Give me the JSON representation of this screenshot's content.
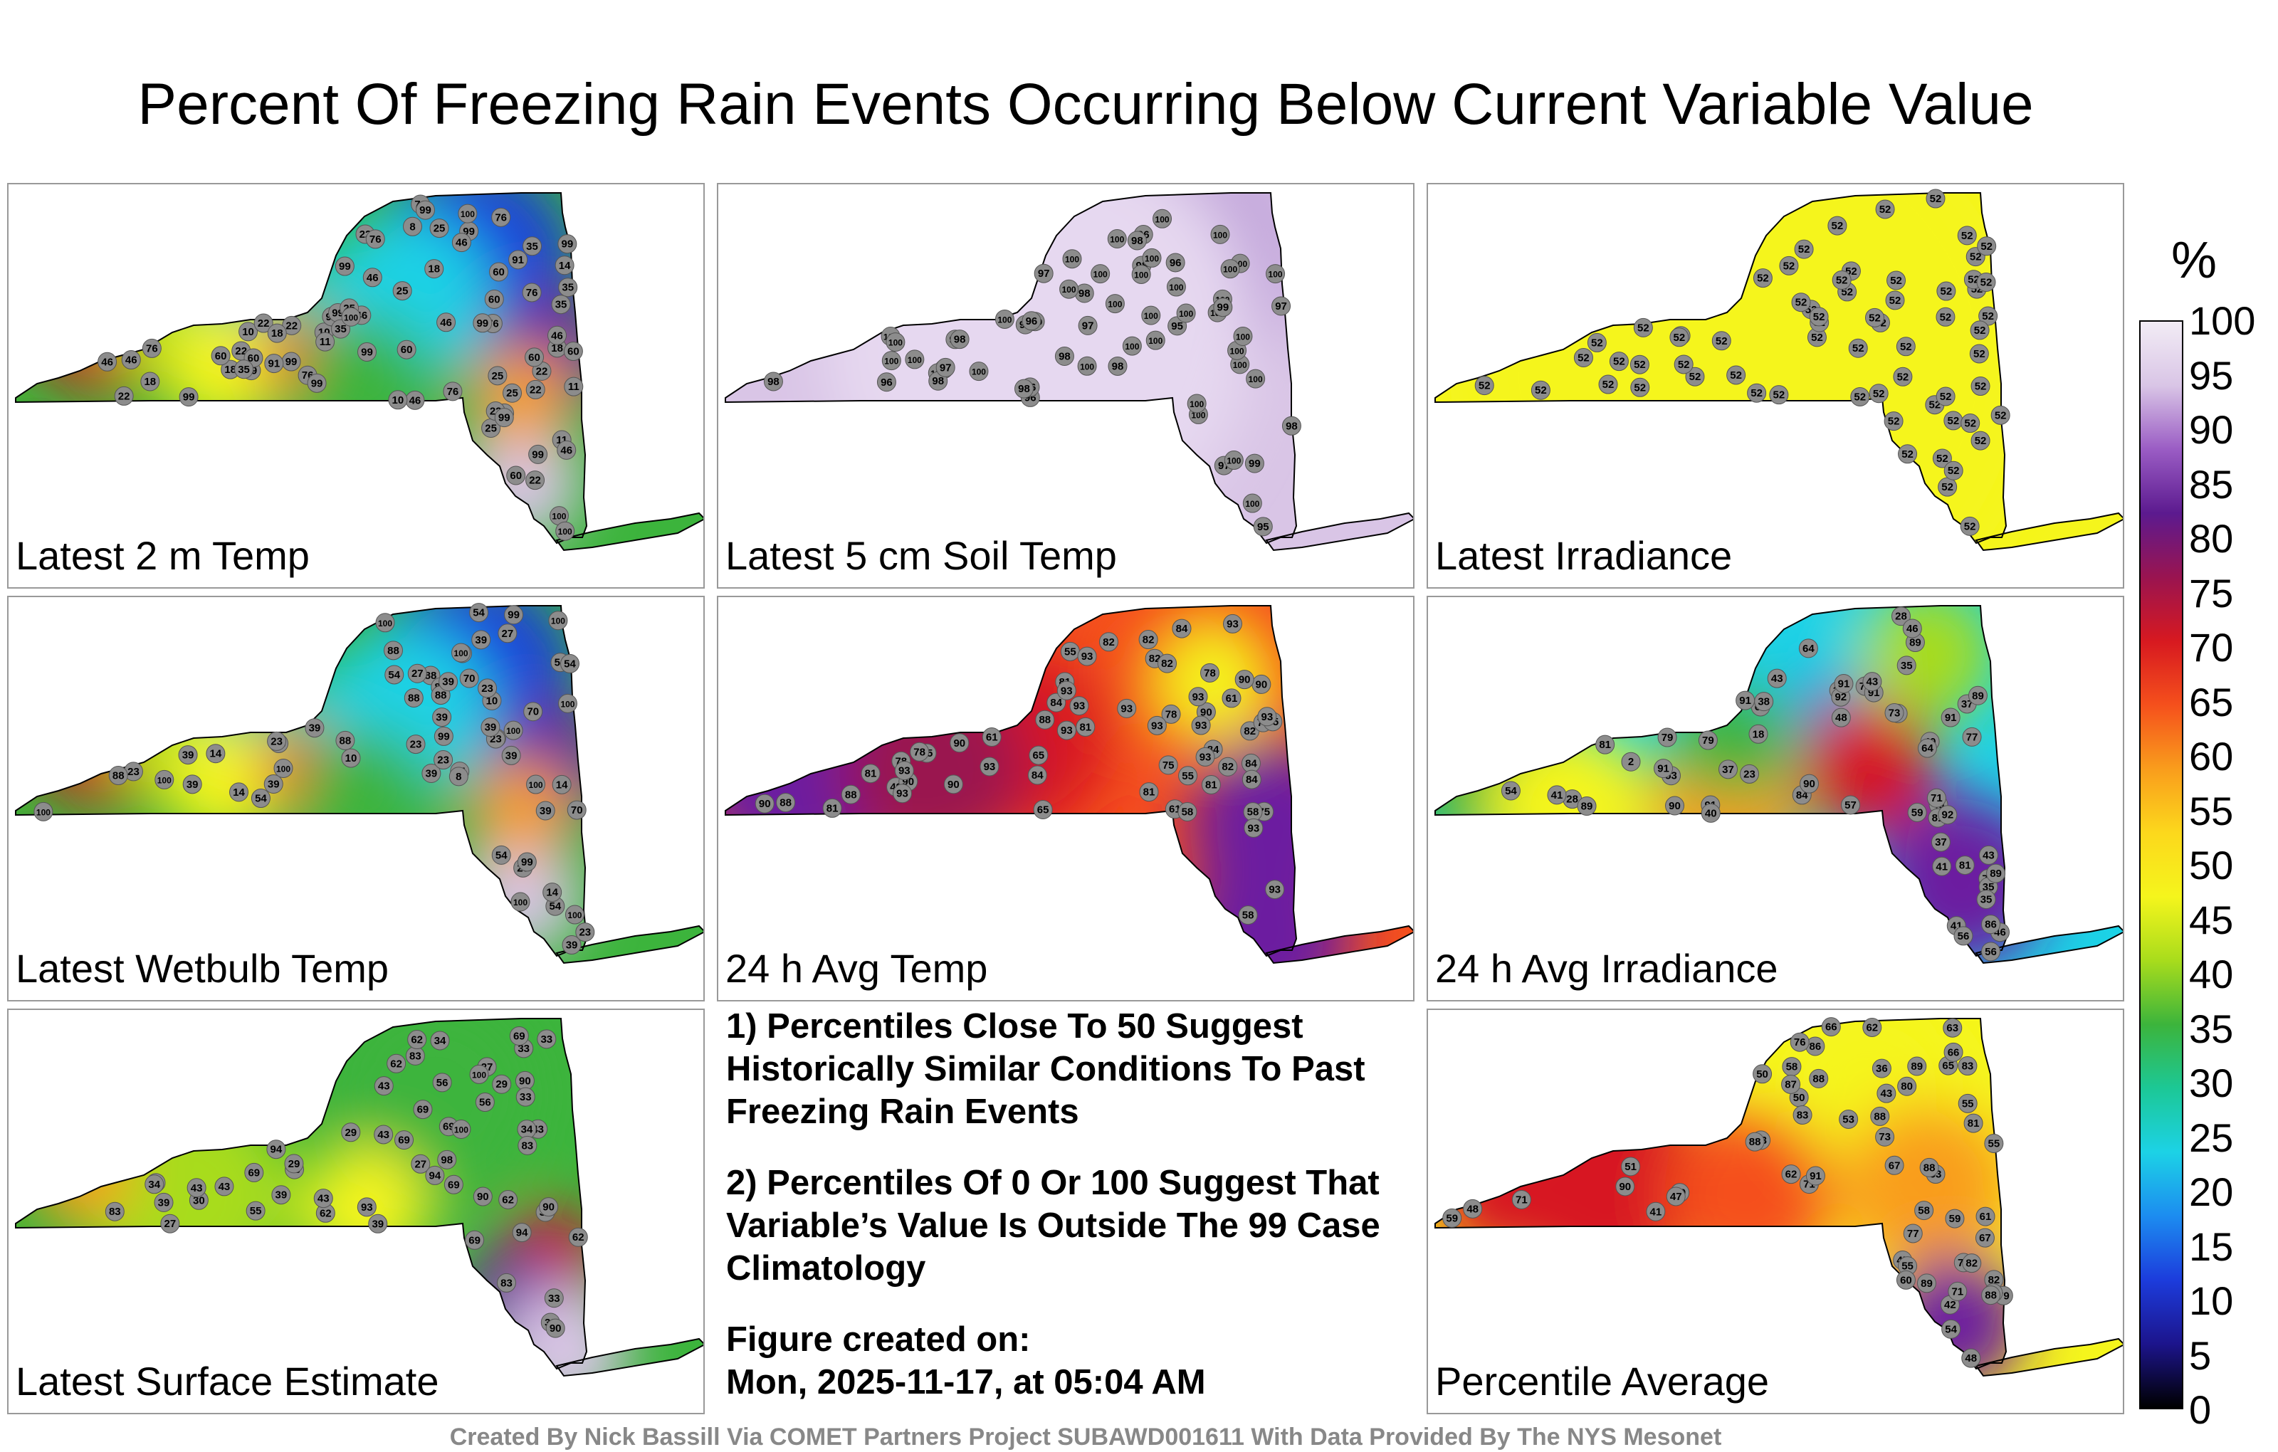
{
  "title": "Percent Of Freezing Rain Events Occurring Below Current Variable Value",
  "panels": [
    {
      "label": "Latest 2 m Temp",
      "scheme": "mixed_cool",
      "values": [
        "35",
        "18",
        "46",
        "18",
        "76",
        "22",
        "10",
        "8",
        "60",
        "46",
        "35",
        "10",
        "11",
        "60",
        "99",
        "76",
        "25",
        "22",
        "11",
        "10",
        "11",
        "22",
        "99",
        "91",
        "76",
        "22",
        "46",
        "18",
        "25",
        "22",
        "76",
        "46",
        "60",
        "99",
        "46",
        "25",
        "60",
        "99",
        "76",
        "60",
        "22",
        "46",
        "25",
        "18",
        "22",
        "76",
        "99",
        "99",
        "60",
        "76",
        "46",
        "18",
        "22",
        "35",
        "25",
        "14",
        "91",
        "60",
        "22",
        "18",
        "35",
        "76",
        "46",
        "25",
        "60",
        "35",
        "46",
        "99",
        "99",
        "91",
        "99",
        "99",
        "99",
        "99",
        "100",
        "99",
        "100",
        "100",
        "99",
        "100"
      ]
    },
    {
      "label": "Latest 5 cm Soil Temp",
      "scheme": "lavender",
      "values": [
        "96",
        "98",
        "96",
        "97",
        "96",
        "97",
        "100",
        "97",
        "100",
        "100",
        "96",
        "97",
        "95",
        "100",
        "100",
        "100",
        "100",
        "98",
        "96",
        "100",
        "100",
        "100",
        "97",
        "95",
        "100",
        "98",
        "100",
        "99",
        "100",
        "98",
        "100",
        "100",
        "98",
        "98",
        "100",
        "100",
        "98",
        "100",
        "96",
        "100",
        "100",
        "98",
        "100",
        "97",
        "100",
        "98",
        "100",
        "100",
        "100",
        "98",
        "97",
        "100",
        "96",
        "100",
        "100",
        "100",
        "100",
        "100",
        "100",
        "99",
        "100",
        "100",
        "100",
        "100"
      ]
    },
    {
      "label": "Latest Irradiance",
      "scheme": "yellow",
      "values": [
        "52",
        "52",
        "52",
        "52",
        "52",
        "52",
        "52",
        "52",
        "52",
        "52",
        "52",
        "52",
        "52",
        "52",
        "52",
        "52",
        "52",
        "52",
        "52",
        "52",
        "52",
        "52",
        "52",
        "52",
        "52",
        "52",
        "52",
        "52",
        "52",
        "52",
        "52",
        "52",
        "52",
        "52",
        "52",
        "52",
        "52",
        "52",
        "52",
        "52",
        "52",
        "52",
        "52",
        "52",
        "52",
        "52",
        "52",
        "52",
        "52",
        "52",
        "52",
        "52",
        "52",
        "52",
        "52",
        "52",
        "52",
        "52",
        "52",
        "52",
        "52",
        "52",
        "52",
        "52"
      ]
    },
    {
      "label": "Latest Wetbulb Temp",
      "scheme": "mixed_cool",
      "values": [
        "39",
        "14",
        "39",
        "14",
        "70",
        "54",
        "10",
        "8",
        "23",
        "27",
        "10",
        "11",
        "88",
        "100",
        "88",
        "23",
        "70",
        "100",
        "88",
        "54",
        "39",
        "23",
        "100",
        "88",
        "23",
        "54",
        "39",
        "88",
        "39",
        "54",
        "39",
        "23",
        "54",
        "23",
        "39",
        "14",
        "100",
        "70",
        "88",
        "54",
        "14",
        "39",
        "88",
        "39",
        "39",
        "54",
        "39",
        "23",
        "23",
        "27",
        "39",
        "14",
        "99",
        "99",
        "54",
        "100",
        "100",
        "100",
        "99",
        "100",
        "100",
        "100",
        "100",
        "100"
      ]
    },
    {
      "label": "24 h Avg Temp",
      "scheme": "warm",
      "values": [
        "75",
        "61",
        "81",
        "61",
        "82",
        "81",
        "78",
        "55",
        "49",
        "84",
        "75",
        "58",
        "55",
        "88",
        "90",
        "88",
        "84",
        "82",
        "90",
        "84",
        "65",
        "61",
        "90",
        "78",
        "90",
        "75",
        "82",
        "84",
        "78",
        "65",
        "82",
        "90",
        "81",
        "65",
        "58",
        "81",
        "78",
        "78",
        "84",
        "90",
        "82",
        "81",
        "58",
        "84",
        "81",
        "88",
        "82",
        "90",
        "93",
        "93",
        "93",
        "93",
        "93",
        "93",
        "93",
        "93",
        "93",
        "93",
        "93",
        "93",
        "93",
        "93",
        "93",
        "93"
      ]
    },
    {
      "label": "24 h Avg Irradiance",
      "scheme": "mixed_warm",
      "values": [
        "41",
        "37",
        "23",
        "46",
        "18",
        "71",
        "31",
        "35",
        "28",
        "37",
        "2",
        "43",
        "41",
        "48",
        "35",
        "49",
        "35",
        "28",
        "40",
        "73",
        "41",
        "71",
        "79",
        "77",
        "43",
        "56",
        "57",
        "37",
        "64",
        "81",
        "89",
        "54",
        "38",
        "59",
        "79",
        "73",
        "81",
        "46",
        "64",
        "53",
        "89",
        "90",
        "89",
        "64",
        "56",
        "81",
        "84",
        "91",
        "89",
        "86",
        "91",
        "90",
        "92",
        "91",
        "91",
        "92",
        "91",
        "91",
        "43",
        "35",
        "40"
      ]
    },
    {
      "label": "Latest Surface Estimate",
      "scheme": "mixed_green",
      "values": [
        "43",
        "43",
        "39",
        "33",
        "55",
        "34",
        "27",
        "69",
        "43",
        "29",
        "27",
        "34",
        "94",
        "83",
        "69",
        "90",
        "34",
        "27",
        "29",
        "30",
        "90",
        "62",
        "69",
        "43",
        "30",
        "29",
        "56",
        "33",
        "62",
        "39",
        "33",
        "43",
        "100",
        "94",
        "62",
        "33",
        "69",
        "69",
        "39",
        "43",
        "56",
        "34",
        "62",
        "69",
        "69",
        "43",
        "39",
        "83",
        "83",
        "90",
        "83",
        "93",
        "94",
        "98",
        "100",
        "62",
        "90"
      ]
    },
    {
      "label": "Percentile Average",
      "scheme": "mixed_avg",
      "values": [
        "55",
        "43",
        "45",
        "59",
        "41",
        "55",
        "67",
        "58",
        "50",
        "36",
        "42",
        "43",
        "48",
        "83",
        "78",
        "71",
        "82",
        "86",
        "69",
        "61",
        "59",
        "76",
        "81",
        "71",
        "82",
        "66",
        "54",
        "60",
        "53",
        "62",
        "79",
        "58",
        "83",
        "48",
        "51",
        "77",
        "62",
        "67",
        "50",
        "55",
        "65",
        "71",
        "73",
        "47",
        "63",
        "80",
        "53",
        "88",
        "89",
        "88",
        "87",
        "88",
        "90",
        "91",
        "89",
        "88",
        "66",
        "83",
        "88"
      ]
    }
  ],
  "notes": {
    "note1": "1) Percentiles Close To 50 Suggest Historically Similar Conditions To Past Freezing Rain Events",
    "note2": "2) Percentiles Of 0 Or 100 Suggest That Variable’s Value Is Outside The 99 Case Climatology",
    "created_label": "Figure created on:",
    "created_value": "Mon, 2025-11-17, at 05:04 AM"
  },
  "credit": "Created By Nick Bassill Via COMET Partners Project SUBAWD001611 With Data Provided By The NYS Mesonet",
  "colorbar": {
    "unit": "%",
    "ticks": [
      "100",
      "95",
      "90",
      "85",
      "80",
      "75",
      "70",
      "65",
      "60",
      "55",
      "50",
      "45",
      "40",
      "35",
      "30",
      "25",
      "20",
      "15",
      "10",
      "5",
      "0"
    ],
    "colors": [
      "#f2ecf5",
      "#d9c5e6",
      "#9a5cc4",
      "#5c1a8f",
      "#9a1450",
      "#d71920",
      "#f5501c",
      "#f99d1c",
      "#fcd81c",
      "#f5f51c",
      "#a8dc1c",
      "#3cb43c",
      "#1cc896",
      "#1cd2e6",
      "#1c8cf0",
      "#1c3cdc",
      "#1c148c",
      "#000000"
    ]
  }
}
